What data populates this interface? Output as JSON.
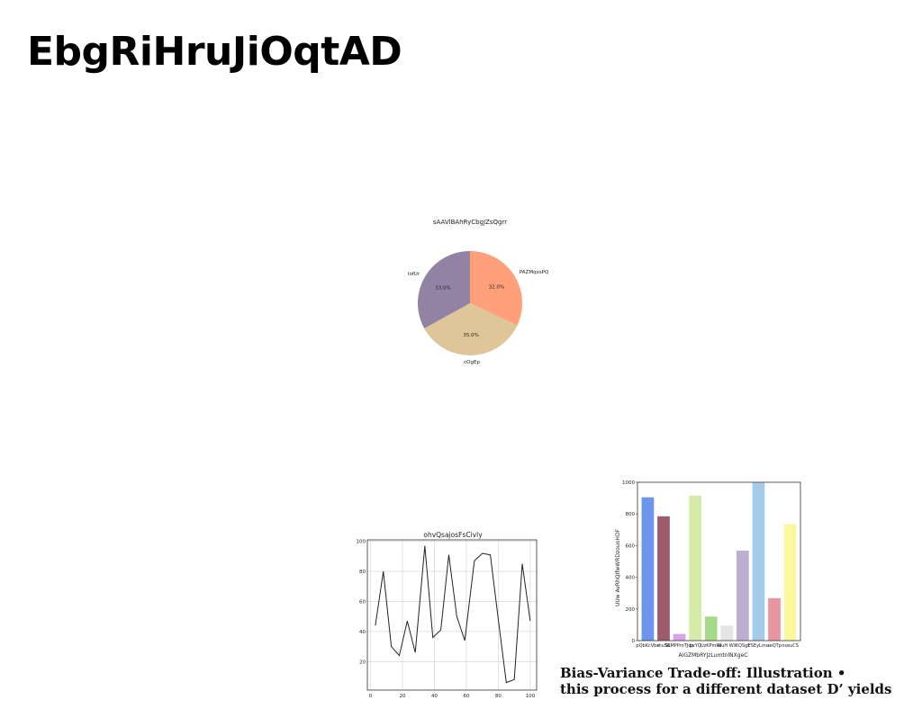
{
  "page": {
    "title": "EbgRiHruJiOqtAD",
    "caption_lines": [
      "Bias-Variance Trade-off: Illustration •",
      "this process for a different dataset D’ yields"
    ]
  },
  "chart_data": [
    {
      "type": "pie",
      "title": "sAAVlBAhRyCbgJZsQgrr",
      "labels": [
        "PAZMqxsPQ",
        "cOgEp",
        "lofUr"
      ],
      "values": [
        32.0,
        35.0,
        33.0
      ],
      "value_labels": [
        "32.0%",
        "35.0%",
        "33.0%"
      ],
      "colors": [
        "#FFA07A",
        "#DFC699",
        "#9283A5"
      ],
      "start_angle": 90,
      "direction": "clockwise"
    },
    {
      "type": "line",
      "title": "ohvQsajosFsCivly",
      "x": [
        3,
        8,
        13,
        18,
        23,
        28,
        34,
        39,
        44,
        49,
        54,
        59,
        65,
        70,
        75,
        80,
        85,
        90,
        95,
        100
      ],
      "y": [
        44,
        80,
        30,
        24,
        47,
        26,
        97,
        36,
        41,
        91,
        50,
        34,
        87,
        92,
        91,
        48,
        6,
        8,
        85,
        47
      ],
      "xlim": [
        -2,
        104
      ],
      "ylim": [
        1,
        101
      ],
      "xticks": [
        0,
        20,
        40,
        60,
        80,
        100
      ],
      "yticks": [
        20,
        40,
        60,
        80,
        100
      ],
      "grid": true,
      "line_color": "#222222"
    },
    {
      "type": "bar",
      "title": "",
      "xlabel": "AiGZMbRYJzLumtnlNXgeC",
      "ylabel": "UUw AvRhQIfwWRDzounHDF",
      "categories": [
        "pQbKcVbe",
        "rhuSR",
        "SLMPPmTJqp",
        "bvYQ",
        "UzKPmkd",
        "WuH WX",
        "XQSgL",
        "FSEyLmu",
        "seQTp",
        "nseuCS"
      ],
      "tick_labels": [
        "pQbKcVbe",
        "rhuSR",
        "SLMPPmTJqp",
        "bvYQ",
        "UzKPmkd",
        "WuH WX",
        "XQSgL",
        "FSEyLmu",
        "seQTp",
        "nseuCS"
      ],
      "values": [
        905,
        785,
        42,
        915,
        152,
        95,
        568,
        998,
        268,
        735
      ],
      "colors": [
        "#6E95EC",
        "#9C5A6C",
        "#D7A2EA",
        "#D5EBA8",
        "#A8D989",
        "#E5E5E5",
        "#BCAED0",
        "#A4CCEA",
        "#E7959F",
        "#FBF79E"
      ],
      "ylim": [
        0,
        1000
      ],
      "yticks": [
        0,
        200,
        400,
        600,
        800,
        1000
      ]
    }
  ]
}
